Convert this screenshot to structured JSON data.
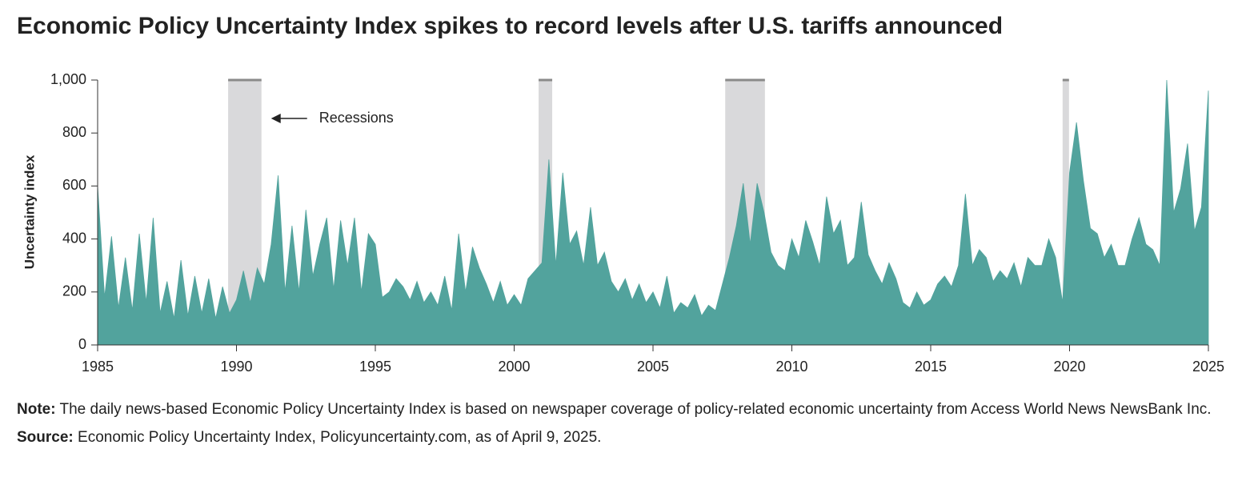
{
  "chart_data": {
    "type": "area",
    "title": "Economic Policy Uncertainty Index spikes to record levels after U.S. tariffs announced",
    "y_label": "Uncertainty index",
    "annotation": "Recessions",
    "color": "#52a39d",
    "recession_color": "#d9d9db",
    "recessions": [
      [
        1989.7,
        1990.9
      ],
      [
        2000.88,
        2001.37
      ],
      [
        2007.6,
        2009.03
      ],
      [
        2019.75,
        2019.98
      ]
    ],
    "xlim": [
      1985,
      2025
    ],
    "xticks": [
      1985,
      1990,
      1995,
      2000,
      2005,
      2010,
      2015,
      2020,
      2025
    ],
    "ylim": [
      0,
      1000
    ],
    "yticks": [
      0,
      200,
      400,
      600,
      800,
      {
        "value": 1000,
        "label": "1,000"
      }
    ],
    "x": [
      1985,
      1985.25,
      1985.5,
      1985.75,
      1986,
      1986.25,
      1986.5,
      1986.75,
      1987,
      1987.25,
      1987.5,
      1987.75,
      1988,
      1988.25,
      1988.5,
      1988.75,
      1989,
      1989.25,
      1989.5,
      1989.75,
      1990,
      1990.25,
      1990.5,
      1990.75,
      1991,
      1991.25,
      1991.5,
      1991.75,
      1992,
      1992.25,
      1992.5,
      1992.75,
      1993,
      1993.25,
      1993.5,
      1993.75,
      1994,
      1994.25,
      1994.5,
      1994.75,
      1995,
      1995.25,
      1995.5,
      1995.75,
      1996,
      1996.25,
      1996.5,
      1996.75,
      1997,
      1997.25,
      1997.5,
      1997.75,
      1998,
      1998.25,
      1998.5,
      1998.75,
      1999,
      1999.25,
      1999.5,
      1999.75,
      2000,
      2000.25,
      2000.5,
      2000.75,
      2001,
      2001.25,
      2001.5,
      2001.75,
      2002,
      2002.25,
      2002.5,
      2002.75,
      2003,
      2003.25,
      2003.5,
      2003.75,
      2004,
      2004.25,
      2004.5,
      2004.75,
      2005,
      2005.25,
      2005.5,
      2005.75,
      2006,
      2006.25,
      2006.5,
      2006.75,
      2007,
      2007.25,
      2007.5,
      2007.75,
      2008,
      2008.25,
      2008.5,
      2008.75,
      2009,
      2009.25,
      2009.5,
      2009.75,
      2010,
      2010.25,
      2010.5,
      2010.75,
      2011,
      2011.25,
      2011.5,
      2011.75,
      2012,
      2012.25,
      2012.5,
      2012.75,
      2013,
      2013.25,
      2013.5,
      2013.75,
      2014,
      2014.25,
      2014.5,
      2014.75,
      2015,
      2015.25,
      2015.5,
      2015.75,
      2016,
      2016.25,
      2016.5,
      2016.75,
      2017,
      2017.25,
      2017.5,
      2017.75,
      2018,
      2018.25,
      2018.5,
      2018.75,
      2019,
      2019.25,
      2019.5,
      2019.75,
      2020,
      2020.25,
      2020.5,
      2020.75,
      2021,
      2021.25,
      2021.5,
      2021.75,
      2022,
      2022.25,
      2022.5,
      2022.75,
      2023,
      2023.25,
      2023.5,
      2023.75,
      2024,
      2024.25,
      2024.5,
      2024.75,
      2025
    ],
    "values": [
      600,
      180,
      410,
      140,
      330,
      130,
      420,
      160,
      480,
      120,
      240,
      100,
      320,
      110,
      260,
      120,
      250,
      100,
      220,
      120,
      170,
      280,
      160,
      290,
      230,
      380,
      640,
      200,
      450,
      200,
      510,
      260,
      380,
      480,
      210,
      470,
      300,
      480,
      200,
      420,
      380,
      180,
      200,
      250,
      220,
      170,
      240,
      160,
      200,
      150,
      260,
      130,
      420,
      200,
      370,
      290,
      230,
      160,
      240,
      150,
      190,
      150,
      250,
      280,
      310,
      700,
      300,
      650,
      380,
      430,
      300,
      520,
      300,
      350,
      240,
      200,
      250,
      170,
      230,
      160,
      200,
      140,
      260,
      120,
      160,
      140,
      190,
      110,
      150,
      130,
      230,
      330,
      450,
      610,
      380,
      610,
      500,
      350,
      300,
      280,
      400,
      330,
      470,
      390,
      300,
      560,
      420,
      470,
      300,
      330,
      540,
      340,
      280,
      230,
      310,
      250,
      160,
      140,
      200,
      150,
      170,
      230,
      260,
      220,
      300,
      570,
      300,
      360,
      330,
      240,
      280,
      250,
      310,
      220,
      330,
      300,
      300,
      400,
      330,
      160,
      650,
      840,
      620,
      440,
      420,
      330,
      380,
      300,
      300,
      400,
      480,
      380,
      360,
      300,
      1000,
      500,
      590,
      760,
      430,
      520,
      960
    ],
    "note_label": "Note:",
    "note": "The daily news-based Economic Policy Uncertainty Index is based on newspaper coverage of policy-related economic uncertainty from Access World News NewsBank Inc.",
    "source_label": "Source:",
    "source": "Economic Policy Uncertainty Index, Policyuncertainty.com, as of April 9, 2025."
  }
}
